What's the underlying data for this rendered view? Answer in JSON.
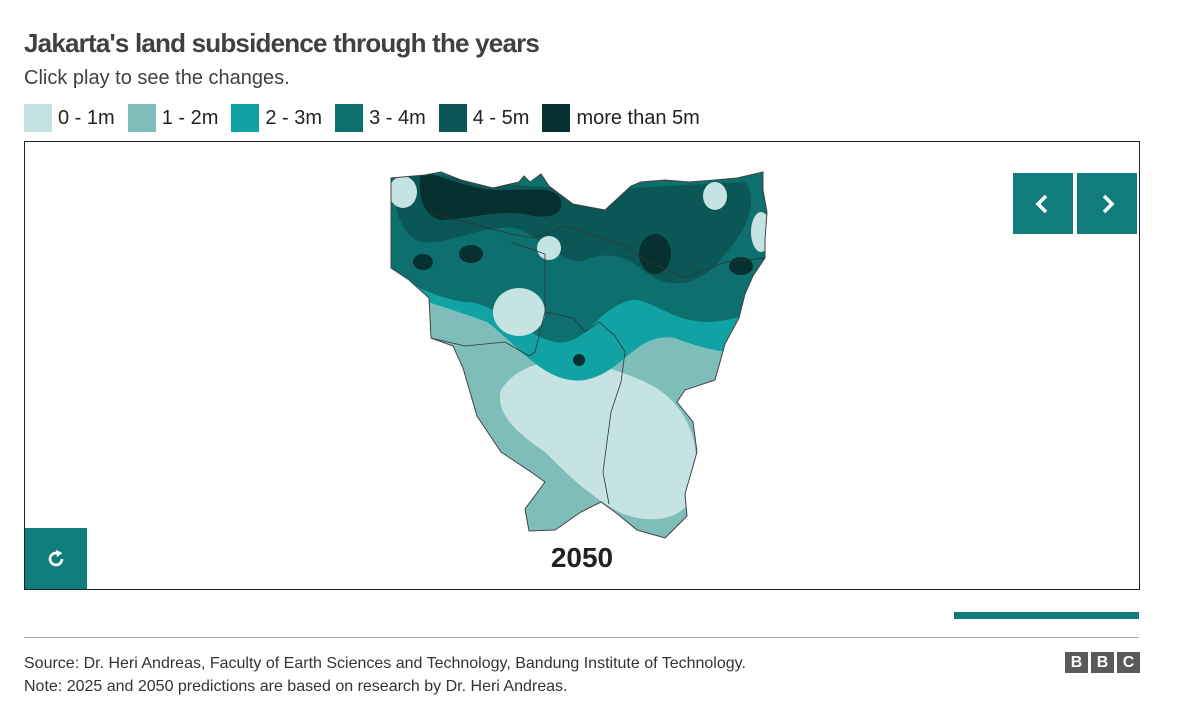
{
  "header": {
    "title": "Jakarta's land subsidence through the years",
    "subtitle": "Click play to see the changes."
  },
  "legend": [
    {
      "label": "0 - 1m",
      "color": "#c4e3e2"
    },
    {
      "label": "1 - 2m",
      "color": "#7fbdba"
    },
    {
      "label": "2 - 3m",
      "color": "#11a3a3"
    },
    {
      "label": "3 - 4m",
      "color": "#0d6f6e"
    },
    {
      "label": "4 - 5m",
      "color": "#0b5756"
    },
    {
      "label": "more than 5m",
      "color": "#05302f"
    }
  ],
  "map": {
    "year": "2050",
    "prev_icon": "chevron-left-icon",
    "next_icon": "chevron-right-icon",
    "replay_icon": "replay-icon"
  },
  "progress": {
    "fraction": 1.0
  },
  "footer": {
    "source": "Source: Dr. Heri Andreas, Faculty of Earth Sciences and Technology, Bandung Institute of Technology.",
    "note": "Note: 2025 and 2050 predictions are based on research by Dr. Heri Andreas.",
    "logo": [
      "B",
      "B",
      "C"
    ]
  },
  "colors": {
    "accent": "#117c7c"
  }
}
